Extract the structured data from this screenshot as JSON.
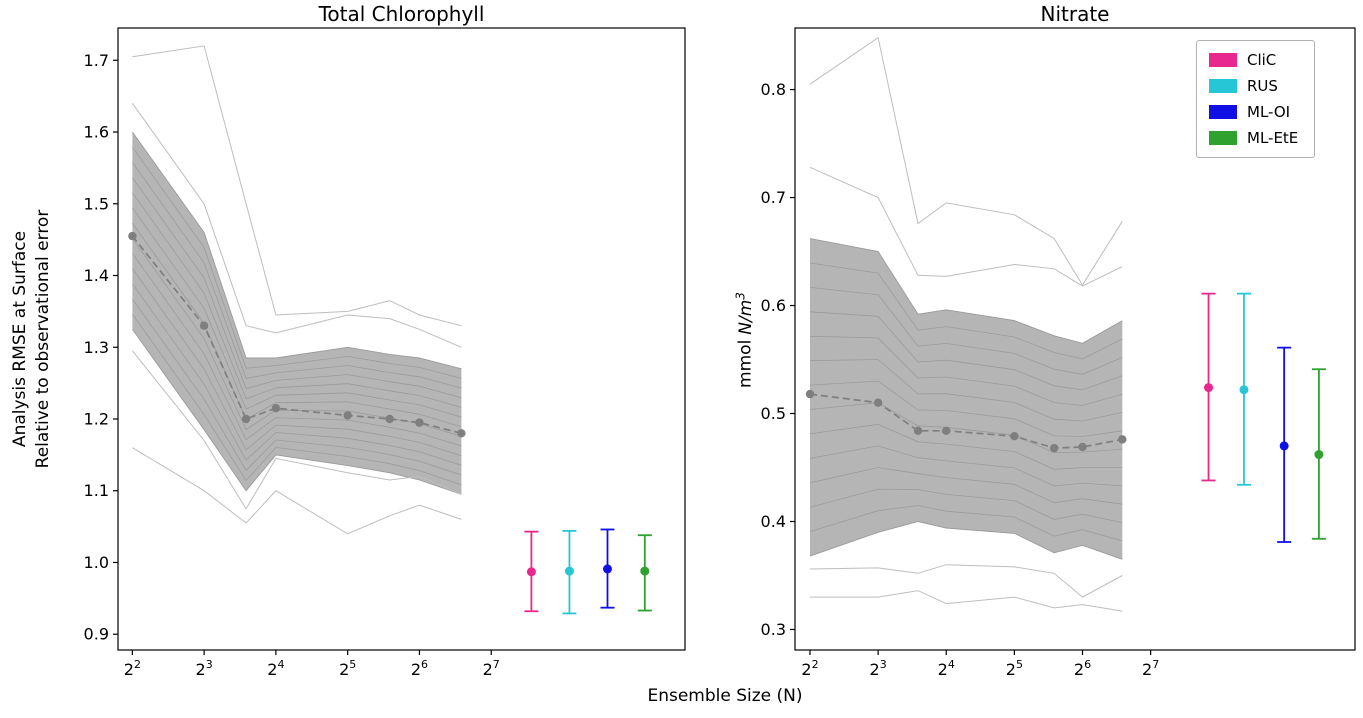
{
  "chart_data": {
    "type": "line",
    "xlabel": "Ensemble Size (N)",
    "x_scale": "log2",
    "x_tick_exponents": [
      2,
      3,
      4,
      5,
      6,
      7
    ],
    "legend": {
      "position": "top-right",
      "entries": [
        {
          "label": "CliC",
          "color": "#e8288f"
        },
        {
          "label": "RUS",
          "color": "#27c6d6"
        },
        {
          "label": "ML-OI",
          "color": "#1010e6"
        },
        {
          "label": "ML-EtE",
          "color": "#2ea12e"
        }
      ]
    },
    "styles": {
      "mean_color": "#7f7f7f",
      "band_fill": "#b5b5b5",
      "inner_line": "#9b9b9b",
      "outer_line": "#bdbdbd"
    },
    "panels": [
      {
        "title": "Total Chlorophyll",
        "ylabel_lines": [
          "Analysis RMSE at Surface",
          "Relative to observational error"
        ],
        "ensemble_sizes": [
          4,
          8,
          12,
          16,
          32,
          48,
          64,
          96
        ],
        "x_log2": [
          2,
          3,
          3.585,
          4,
          5,
          5.585,
          6,
          6.585
        ],
        "xlim_log2": [
          1.8,
          9.7
        ],
        "ylim": [
          0.878,
          1.745
        ],
        "yticks": [
          0.9,
          1.0,
          1.1,
          1.2,
          1.3,
          1.4,
          1.5,
          1.6,
          1.7
        ],
        "mean": [
          1.455,
          1.33,
          1.2,
          1.215,
          1.205,
          1.2,
          1.195,
          1.18
        ],
        "band_upper": [
          1.6,
          1.46,
          1.285,
          1.285,
          1.3,
          1.29,
          1.285,
          1.27
        ],
        "band_lower": [
          1.325,
          1.185,
          1.1,
          1.15,
          1.135,
          1.125,
          1.115,
          1.095
        ],
        "band_inner_lines": 12,
        "outer_lines": [
          [
            1.705,
            1.72,
            1.5,
            1.345,
            1.35,
            1.365,
            1.345,
            1.33
          ],
          [
            1.64,
            1.5,
            1.33,
            1.32,
            1.345,
            1.34,
            1.325,
            1.3
          ],
          [
            1.295,
            1.17,
            1.075,
            1.145,
            1.125,
            1.115,
            1.12,
            1.095
          ],
          [
            1.16,
            1.1,
            1.055,
            1.1,
            1.04,
            1.065,
            1.08,
            1.06
          ]
        ],
        "errorbars": [
          {
            "label": "CliC",
            "x_log2": 7.56,
            "y": 0.987,
            "lo": 0.932,
            "hi": 1.043
          },
          {
            "label": "RUS",
            "x_log2": 8.09,
            "y": 0.988,
            "lo": 0.929,
            "hi": 1.044
          },
          {
            "label": "ML-OI",
            "x_log2": 8.62,
            "y": 0.991,
            "lo": 0.937,
            "hi": 1.046
          },
          {
            "label": "ML-EtE",
            "x_log2": 9.14,
            "y": 0.988,
            "lo": 0.933,
            "hi": 1.038
          }
        ]
      },
      {
        "title": "Nitrate",
        "ylabel": {
          "prefix": "mmol",
          "italic": "N/m",
          "sup": "3"
        },
        "ensemble_sizes": [
          4,
          8,
          12,
          16,
          32,
          48,
          64,
          96
        ],
        "x_log2": [
          2,
          3,
          3.585,
          4,
          5,
          5.585,
          6,
          6.585
        ],
        "xlim_log2": [
          1.78,
          10.0
        ],
        "ylim": [
          0.281,
          0.857
        ],
        "yticks": [
          0.3,
          0.4,
          0.5,
          0.6,
          0.7,
          0.8
        ],
        "mean": [
          0.518,
          0.51,
          0.484,
          0.484,
          0.479,
          0.468,
          0.469,
          0.476
        ],
        "band_upper": [
          0.662,
          0.65,
          0.592,
          0.596,
          0.586,
          0.572,
          0.565,
          0.586
        ],
        "band_lower": [
          0.368,
          0.39,
          0.4,
          0.394,
          0.389,
          0.371,
          0.378,
          0.365
        ],
        "band_inner_lines": 12,
        "outer_lines": [
          [
            0.805,
            0.848,
            0.676,
            0.695,
            0.684,
            0.662,
            0.619,
            0.678
          ],
          [
            0.728,
            0.7,
            0.628,
            0.627,
            0.638,
            0.634,
            0.618,
            0.636
          ],
          [
            0.356,
            0.357,
            0.352,
            0.36,
            0.358,
            0.352,
            0.33,
            0.35
          ],
          [
            0.33,
            0.33,
            0.336,
            0.324,
            0.33,
            0.32,
            0.323,
            0.317
          ]
        ],
        "errorbars": [
          {
            "label": "CliC",
            "x_log2": 7.85,
            "y": 0.524,
            "lo": 0.438,
            "hi": 0.611
          },
          {
            "label": "RUS",
            "x_log2": 8.37,
            "y": 0.522,
            "lo": 0.434,
            "hi": 0.611
          },
          {
            "label": "ML-OI",
            "x_log2": 8.96,
            "y": 0.47,
            "lo": 0.381,
            "hi": 0.561
          },
          {
            "label": "ML-EtE",
            "x_log2": 9.47,
            "y": 0.462,
            "lo": 0.384,
            "hi": 0.541
          }
        ]
      }
    ]
  }
}
